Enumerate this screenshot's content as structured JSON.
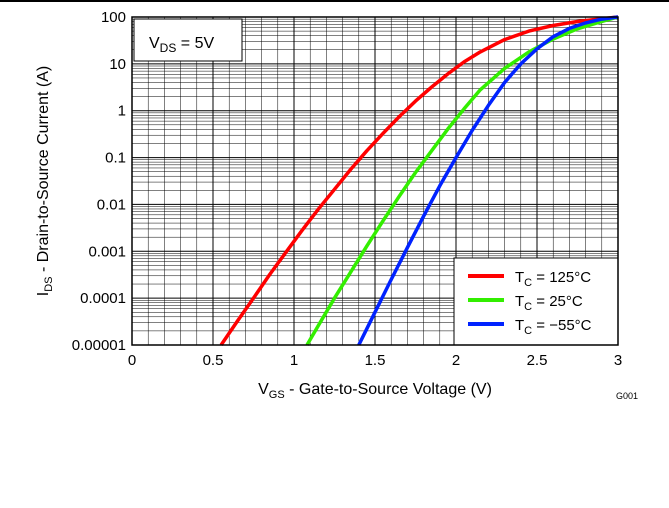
{
  "chart_data": {
    "type": "line",
    "xlabel": {
      "main": "V",
      "sub": "GS",
      "rest": " - Gate-to-Source Voltage (V)"
    },
    "ylabel": {
      "main": "I",
      "sub": "DS",
      "rest": " - Drain-to-Source Current (A)"
    },
    "xlim": [
      0,
      3
    ],
    "ylim": [
      1e-05,
      100
    ],
    "yscale": "log",
    "grid": true,
    "x_ticks": [
      {
        "value": 0,
        "label": "0"
      },
      {
        "value": 0.5,
        "label": "0.5"
      },
      {
        "value": 1,
        "label": "1"
      },
      {
        "value": 1.5,
        "label": "1.5"
      },
      {
        "value": 2,
        "label": "2"
      },
      {
        "value": 2.5,
        "label": "2.5"
      },
      {
        "value": 3,
        "label": "3"
      }
    ],
    "y_ticks": [
      {
        "value": 1e-05,
        "label": "0.00001"
      },
      {
        "value": 0.0001,
        "label": "0.0001"
      },
      {
        "value": 0.001,
        "label": "0.001"
      },
      {
        "value": 0.01,
        "label": "0.01"
      },
      {
        "value": 0.1,
        "label": "0.1"
      },
      {
        "value": 1,
        "label": "1"
      },
      {
        "value": 10,
        "label": "10"
      },
      {
        "value": 100,
        "label": "100"
      }
    ],
    "annotation": {
      "main": "V",
      "sub": "DS",
      "rest": " = 5V"
    },
    "legend_position": "bottom-right",
    "figure_id": "G001",
    "series": [
      {
        "name": {
          "main": "T",
          "sub": "C",
          "rest": " = 125°C"
        },
        "color": "#ff0000",
        "x": [
          0.55,
          0.65,
          0.75,
          0.85,
          0.95,
          1.05,
          1.15,
          1.25,
          1.35,
          1.45,
          1.55,
          1.65,
          1.75,
          1.85,
          1.95,
          2.05,
          2.15,
          2.3,
          2.45,
          2.6,
          2.75,
          2.9,
          3.0
        ],
        "y": [
          1e-05,
          3.2e-05,
          0.0001,
          0.00032,
          0.00095,
          0.0028,
          0.0079,
          0.021,
          0.056,
          0.14,
          0.33,
          0.75,
          1.6,
          3.2,
          6.1,
          11,
          18,
          33,
          50,
          66,
          80,
          92,
          100
        ]
      },
      {
        "name": {
          "main": "T",
          "sub": "C",
          "rest": " = 25°C"
        },
        "color": "#33ee00",
        "x": [
          1.08,
          1.15,
          1.25,
          1.35,
          1.45,
          1.55,
          1.65,
          1.75,
          1.85,
          1.95,
          2.05,
          2.15,
          2.3,
          2.45,
          2.6,
          2.75,
          2.9,
          3.0
        ],
        "y": [
          1e-05,
          2.6e-05,
          0.0001,
          0.00036,
          0.0013,
          0.0045,
          0.015,
          0.048,
          0.14,
          0.41,
          1.1,
          2.8,
          8,
          18,
          34,
          56,
          80,
          100
        ]
      },
      {
        "name": {
          "main": "T",
          "sub": "C",
          "rest": " = −55°C"
        },
        "color": "#0022ff",
        "x": [
          1.4,
          1.5,
          1.6,
          1.7,
          1.8,
          1.9,
          2.0,
          2.1,
          2.2,
          2.3,
          2.4,
          2.5,
          2.6,
          2.7,
          2.8,
          2.9,
          3.0
        ],
        "y": [
          1e-05,
          5e-05,
          0.00025,
          0.0012,
          0.0056,
          0.025,
          0.1,
          0.38,
          1.3,
          4,
          10,
          21,
          38,
          57,
          75,
          90,
          100
        ]
      }
    ]
  }
}
